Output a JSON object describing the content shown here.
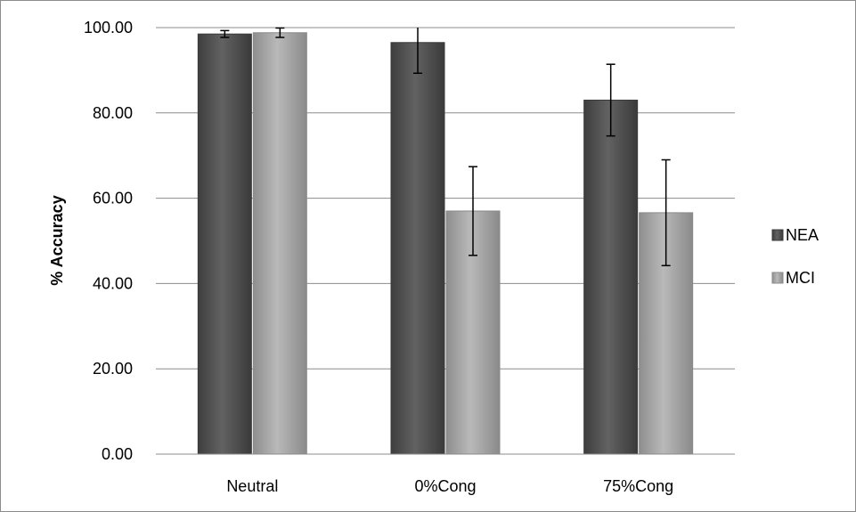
{
  "chart_data": {
    "type": "bar",
    "title": "",
    "xlabel": "",
    "ylabel": "% Accuracy",
    "categories": [
      "Neutral",
      "0%Cong",
      "75%Cong"
    ],
    "y_tick_labels": [
      "0.00",
      "20.00",
      "40.00",
      "60.00",
      "80.00",
      "100.00"
    ],
    "ylim": [
      0,
      100
    ],
    "grid": true,
    "legend_position": "right",
    "series": [
      {
        "name": "NEA",
        "values": [
          98.5,
          96.5,
          83.0
        ],
        "errors": [
          0.8,
          7.2,
          8.4
        ],
        "color": "#555555"
      },
      {
        "name": "MCI",
        "values": [
          98.8,
          57.0,
          56.6
        ],
        "errors": [
          1.1,
          10.4,
          12.4
        ],
        "color": "#a8a8a8"
      }
    ]
  }
}
